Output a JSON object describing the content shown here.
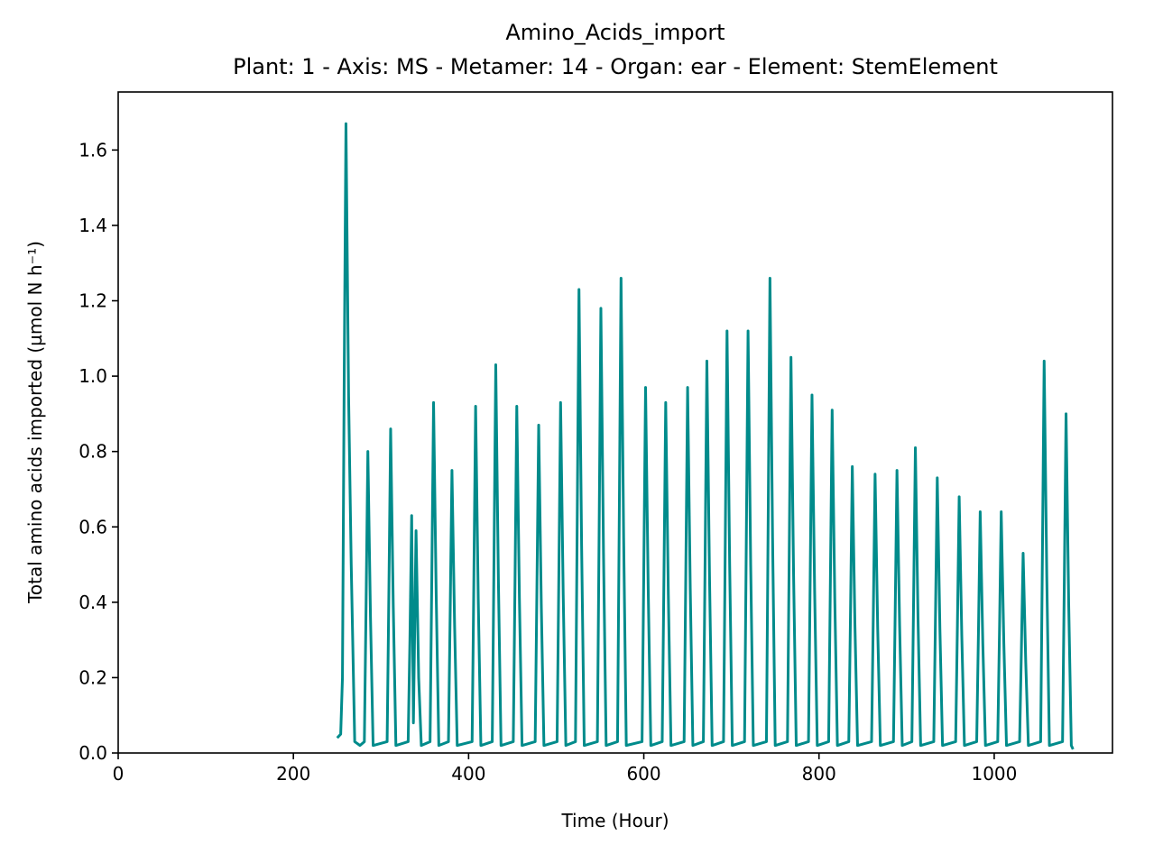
{
  "chart_data": {
    "type": "line",
    "title": "Amino_Acids_import",
    "subtitle": "Plant: 1 - Axis: MS - Metamer: 14 - Organ: ear - Element: StemElement",
    "x_label": "Time (Hour)",
    "y_label": "Total amino acids imported (µmol N h⁻¹)",
    "xlim": [
      0,
      1135
    ],
    "ylim": [
      0,
      1.754
    ],
    "xticks": [
      0,
      200,
      400,
      600,
      800,
      1000
    ],
    "yticks": [
      {
        "value": 0,
        "label": "0.0"
      },
      0.2,
      0.4,
      0.6,
      0.8,
      {
        "value": 1,
        "label": "1.0"
      },
      1.2,
      1.4,
      1.6
    ],
    "x": [
      250,
      254,
      256,
      258,
      260,
      263,
      266,
      270,
      276,
      281,
      283,
      285,
      288,
      291,
      307,
      309,
      311,
      314,
      317,
      331,
      333,
      335,
      337,
      340,
      343,
      346,
      356,
      358,
      360,
      363,
      366,
      377,
      379,
      381,
      384,
      387,
      404,
      406,
      408,
      411,
      414,
      427,
      429,
      431,
      434,
      437,
      451,
      453,
      455,
      458,
      461,
      476,
      478,
      480,
      483,
      486,
      501,
      503,
      505,
      508,
      511,
      522,
      524,
      526,
      529,
      532,
      547,
      549,
      551,
      554,
      557,
      570,
      572,
      574,
      577,
      580,
      598,
      600,
      602,
      605,
      608,
      621,
      623,
      625,
      628,
      631,
      646,
      648,
      650,
      653,
      656,
      668,
      670,
      672,
      675,
      678,
      691,
      693,
      695,
      698,
      701,
      715,
      717,
      719,
      722,
      725,
      740,
      742,
      744,
      747,
      750,
      764,
      766,
      768,
      771,
      774,
      788,
      790,
      792,
      795,
      798,
      811,
      813,
      815,
      818,
      821,
      834,
      836,
      838,
      841,
      844,
      860,
      862,
      864,
      867,
      870,
      885,
      887,
      889,
      892,
      895,
      906,
      908,
      910,
      913,
      916,
      931,
      933,
      935,
      938,
      941,
      956,
      958,
      960,
      963,
      966,
      980,
      982,
      984,
      987,
      990,
      1004,
      1006,
      1008,
      1011,
      1014,
      1029,
      1031,
      1033,
      1036,
      1039,
      1053,
      1055,
      1057,
      1060,
      1063,
      1078,
      1080,
      1082,
      1085,
      1088,
      1090
    ],
    "series": [
      {
        "color": "#008b8b",
        "values": [
          0.04,
          0.05,
          0.2,
          1.0,
          1.67,
          0.95,
          0.5,
          0.03,
          0.02,
          0.03,
          0.4,
          0.8,
          0.36,
          0.02,
          0.03,
          0.43,
          0.86,
          0.39,
          0.02,
          0.03,
          0.3,
          0.63,
          0.08,
          0.59,
          0.2,
          0.02,
          0.03,
          0.47,
          0.93,
          0.42,
          0.02,
          0.03,
          0.38,
          0.75,
          0.34,
          0.02,
          0.03,
          0.46,
          0.92,
          0.41,
          0.02,
          0.03,
          0.52,
          1.03,
          0.46,
          0.02,
          0.03,
          0.46,
          0.92,
          0.41,
          0.02,
          0.03,
          0.44,
          0.87,
          0.39,
          0.02,
          0.03,
          0.47,
          0.93,
          0.42,
          0.02,
          0.03,
          0.62,
          1.23,
          0.55,
          0.02,
          0.03,
          0.59,
          1.18,
          0.53,
          0.02,
          0.03,
          0.63,
          1.26,
          0.57,
          0.02,
          0.03,
          0.49,
          0.97,
          0.44,
          0.02,
          0.03,
          0.47,
          0.93,
          0.42,
          0.02,
          0.03,
          0.49,
          0.97,
          0.44,
          0.02,
          0.03,
          0.52,
          1.04,
          0.47,
          0.02,
          0.03,
          0.56,
          1.12,
          0.5,
          0.02,
          0.03,
          0.56,
          1.12,
          0.5,
          0.02,
          0.03,
          0.63,
          1.26,
          0.57,
          0.02,
          0.03,
          0.53,
          1.05,
          0.47,
          0.02,
          0.03,
          0.48,
          0.95,
          0.43,
          0.02,
          0.03,
          0.46,
          0.91,
          0.41,
          0.02,
          0.03,
          0.38,
          0.76,
          0.34,
          0.02,
          0.03,
          0.37,
          0.74,
          0.33,
          0.02,
          0.03,
          0.38,
          0.75,
          0.34,
          0.02,
          0.03,
          0.41,
          0.81,
          0.36,
          0.02,
          0.03,
          0.37,
          0.73,
          0.33,
          0.02,
          0.03,
          0.34,
          0.68,
          0.31,
          0.02,
          0.03,
          0.32,
          0.64,
          0.29,
          0.02,
          0.03,
          0.32,
          0.64,
          0.29,
          0.02,
          0.03,
          0.27,
          0.53,
          0.24,
          0.02,
          0.03,
          0.52,
          1.04,
          0.47,
          0.02,
          0.03,
          0.45,
          0.9,
          0.4,
          0.02,
          0.01
        ]
      }
    ]
  }
}
